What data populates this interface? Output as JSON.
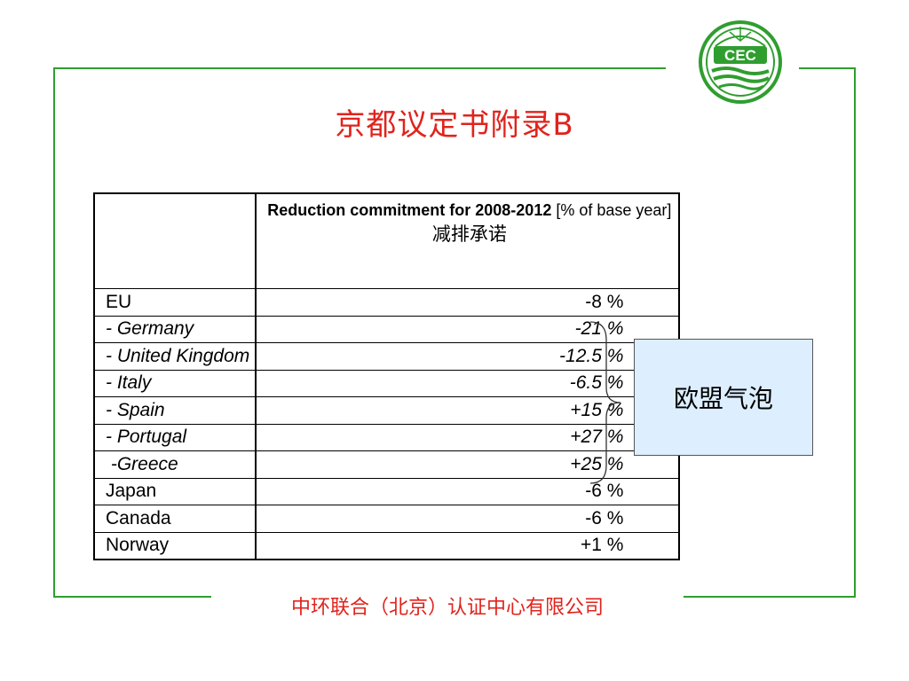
{
  "title": "京都议定书附录B",
  "logo": {
    "text": "CEC",
    "icon": "cec-logo-icon",
    "color": "#2f9e2f"
  },
  "table": {
    "header": {
      "en_bold": "Reduction commitment for 2008-2012",
      "en_normal": " [% of base year]",
      "cn": "减排承诺"
    },
    "rows": [
      {
        "country": "EU",
        "value": "-8 %",
        "italic": false
      },
      {
        "country": "- Germany",
        "value": "-21 %",
        "italic": true
      },
      {
        "country": "- United Kingdom",
        "value": "-12.5 %",
        "italic": true
      },
      {
        "country": "- Italy",
        "value": "-6.5 %",
        "italic": true
      },
      {
        "country": "- Spain",
        "value": "+15 %",
        "italic": true
      },
      {
        "country": "- Portugal",
        "value": "+27 %",
        "italic": true
      },
      {
        "country": " -Greece",
        "value": "+25 %",
        "italic": true
      },
      {
        "country": "Japan",
        "value": "-6 %",
        "italic": false
      },
      {
        "country": "Canada",
        "value": "-6 %",
        "italic": false
      },
      {
        "country": "Norway",
        "value": "+1 %",
        "italic": false
      }
    ]
  },
  "bubble_label": "欧盟气泡",
  "footer": "中环联合（北京）认证中心有限公司",
  "colors": {
    "frame": "#2f9e2f",
    "title": "#e0231c",
    "bubble_bg": "#ddeeff"
  }
}
